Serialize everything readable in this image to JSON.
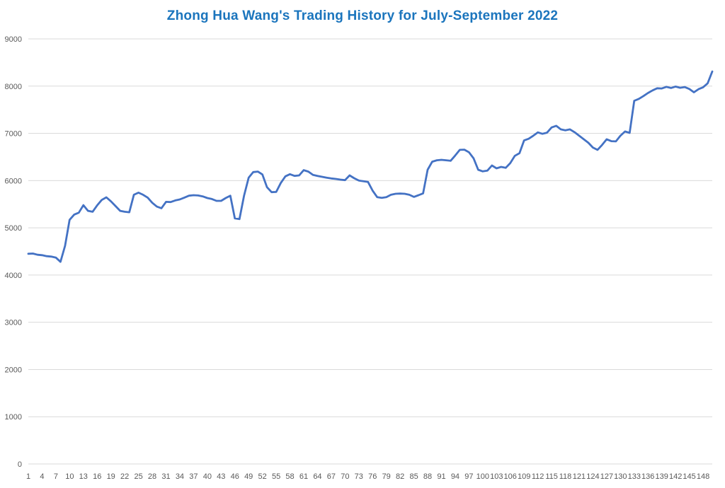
{
  "chart_title": {
    "text": "Zhong Hua Wang's Trading History for July-September 2022",
    "color": "#1b75bd"
  },
  "chart_data": {
    "type": "line",
    "title": "Zhong Hua Wang's Trading History for July-September 2022",
    "xlabel": "",
    "ylabel": "",
    "x_range": [
      1,
      150
    ],
    "ylim": [
      0,
      9000
    ],
    "y_ticks": [
      0,
      1000,
      2000,
      3000,
      4000,
      5000,
      6000,
      7000,
      8000,
      9000
    ],
    "x_tick_step": 3,
    "x_tick_labels": [
      "1",
      "4",
      "7",
      "10",
      "13",
      "16",
      "19",
      "22",
      "25",
      "28",
      "31",
      "34",
      "37",
      "40",
      "43",
      "46",
      "49",
      "52",
      "55",
      "58",
      "61",
      "64",
      "67",
      "70",
      "73",
      "76",
      "79",
      "82",
      "85",
      "88",
      "91",
      "94",
      "97",
      "100",
      "103",
      "106",
      "109",
      "112",
      "115",
      "118",
      "121",
      "124",
      "127",
      "130",
      "133",
      "136",
      "139",
      "142",
      "145",
      "148"
    ],
    "grid": "horizontal",
    "legend": "none",
    "line_color": "#4472c4",
    "line_width": 2.8,
    "gridline_color": "#dadada",
    "axis_label_color": "#595959",
    "values": [
      4450,
      4455,
      4430,
      4420,
      4400,
      4390,
      4370,
      4280,
      4620,
      5170,
      5280,
      5320,
      5480,
      5360,
      5340,
      5475,
      5590,
      5645,
      5560,
      5460,
      5360,
      5340,
      5330,
      5700,
      5745,
      5700,
      5640,
      5530,
      5450,
      5415,
      5550,
      5545,
      5580,
      5600,
      5640,
      5680,
      5690,
      5685,
      5665,
      5630,
      5610,
      5570,
      5570,
      5630,
      5680,
      5200,
      5185,
      5680,
      6060,
      6180,
      6190,
      6130,
      5860,
      5755,
      5760,
      5950,
      6090,
      6135,
      6100,
      6110,
      6220,
      6190,
      6120,
      6100,
      6080,
      6060,
      6045,
      6035,
      6020,
      6010,
      6110,
      6050,
      6000,
      5985,
      5970,
      5790,
      5650,
      5635,
      5650,
      5700,
      5720,
      5725,
      5720,
      5700,
      5655,
      5690,
      5730,
      6230,
      6400,
      6430,
      6440,
      6430,
      6420,
      6530,
      6650,
      6655,
      6600,
      6470,
      6230,
      6195,
      6210,
      6320,
      6260,
      6290,
      6270,
      6370,
      6525,
      6580,
      6850,
      6885,
      6950,
      7020,
      6990,
      7015,
      7125,
      7160,
      7085,
      7065,
      7085,
      7025,
      6950,
      6875,
      6800,
      6700,
      6650,
      6755,
      6875,
      6835,
      6830,
      6950,
      7040,
      7010,
      7690,
      7730,
      7790,
      7855,
      7910,
      7955,
      7950,
      7985,
      7960,
      7990,
      7965,
      7980,
      7940,
      7870,
      7935,
      7975,
      8060,
      8310
    ]
  }
}
